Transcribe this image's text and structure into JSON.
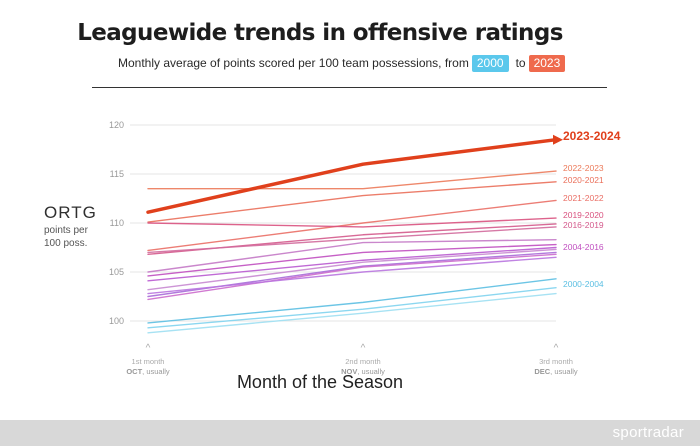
{
  "header": {
    "title": "Leaguewide trends in offensive ratings",
    "subtitle_text": "Monthly average of points scored per 100 team possessions, from",
    "start_badge": "2000",
    "connector": "to",
    "end_badge": "2023"
  },
  "axis": {
    "ylabel": "ORTG",
    "ylabel_sub": "points per 100 poss.",
    "xlabel": "Month of the Season"
  },
  "footer": {
    "logo": "sportradar"
  },
  "chart_data": {
    "type": "line",
    "title": "Leaguewide trends in offensive ratings",
    "ylabel": "ORTG",
    "xlabel": "Month of the Season",
    "ylim": [
      100,
      120
    ],
    "yticks": [
      100,
      105,
      110,
      115,
      120
    ],
    "grid": true,
    "x": [
      "OCT",
      "NOV",
      "DEC"
    ],
    "x_tick_labels": [
      {
        "line1": "1st month",
        "line2": "OCT",
        "line3": "usually"
      },
      {
        "line1": "2nd month",
        "line2": "NOV",
        "line3": "usually"
      },
      {
        "line1": "3rd month",
        "line2": "DEC",
        "line3": "usually"
      }
    ],
    "series": [
      {
        "name": "2023-2024",
        "values": [
          111.1,
          116.0,
          118.5
        ],
        "color": "#e0401c"
      },
      {
        "name": "2022-2023",
        "values": [
          113.5,
          113.5,
          115.3
        ],
        "color": "#ec7a5a"
      },
      {
        "name": "2020-2021",
        "values": [
          110.1,
          112.8,
          114.2
        ],
        "color": "#ea6f5a"
      },
      {
        "name": "2021-2022",
        "values": [
          107.2,
          110.0,
          112.3
        ],
        "color": "#ea6f66"
      },
      {
        "name": "2019-2020",
        "values": [
          110.0,
          109.6,
          110.5
        ],
        "color": "#d9527f"
      },
      {
        "name": "2016-2019",
        "values": [
          106.8,
          108.8,
          109.9
        ],
        "color": "#d45a8c"
      },
      {
        "name": "",
        "values": [
          107.0,
          108.4,
          109.6
        ],
        "color": "#d26a9c"
      },
      {
        "name": "",
        "values": [
          105.0,
          108.0,
          108.3
        ],
        "color": "#c47ac6"
      },
      {
        "name": "2004-2016",
        "values": [
          104.6,
          107.0,
          107.8
        ],
        "color": "#c04fc0"
      },
      {
        "name": "",
        "values": [
          104.1,
          106.2,
          107.5
        ],
        "color": "#b95ad0"
      },
      {
        "name": "",
        "values": [
          103.2,
          106.0,
          107.3
        ],
        "color": "#c889d2"
      },
      {
        "name": "",
        "values": [
          102.5,
          105.6,
          107.0
        ],
        "color": "#a86bd8"
      },
      {
        "name": "",
        "values": [
          102.2,
          105.5,
          106.8
        ],
        "color": "#cc6ccc"
      },
      {
        "name": "",
        "values": [
          102.8,
          105.0,
          106.5
        ],
        "color": "#b975df"
      },
      {
        "name": "2000-2004",
        "values": [
          99.8,
          101.9,
          104.3
        ],
        "color": "#5cbfe2"
      },
      {
        "name": "",
        "values": [
          99.3,
          101.2,
          103.4
        ],
        "color": "#7fd3ee"
      },
      {
        "name": "",
        "values": [
          98.8,
          100.8,
          102.8
        ],
        "color": "#9ddff2"
      }
    ]
  }
}
